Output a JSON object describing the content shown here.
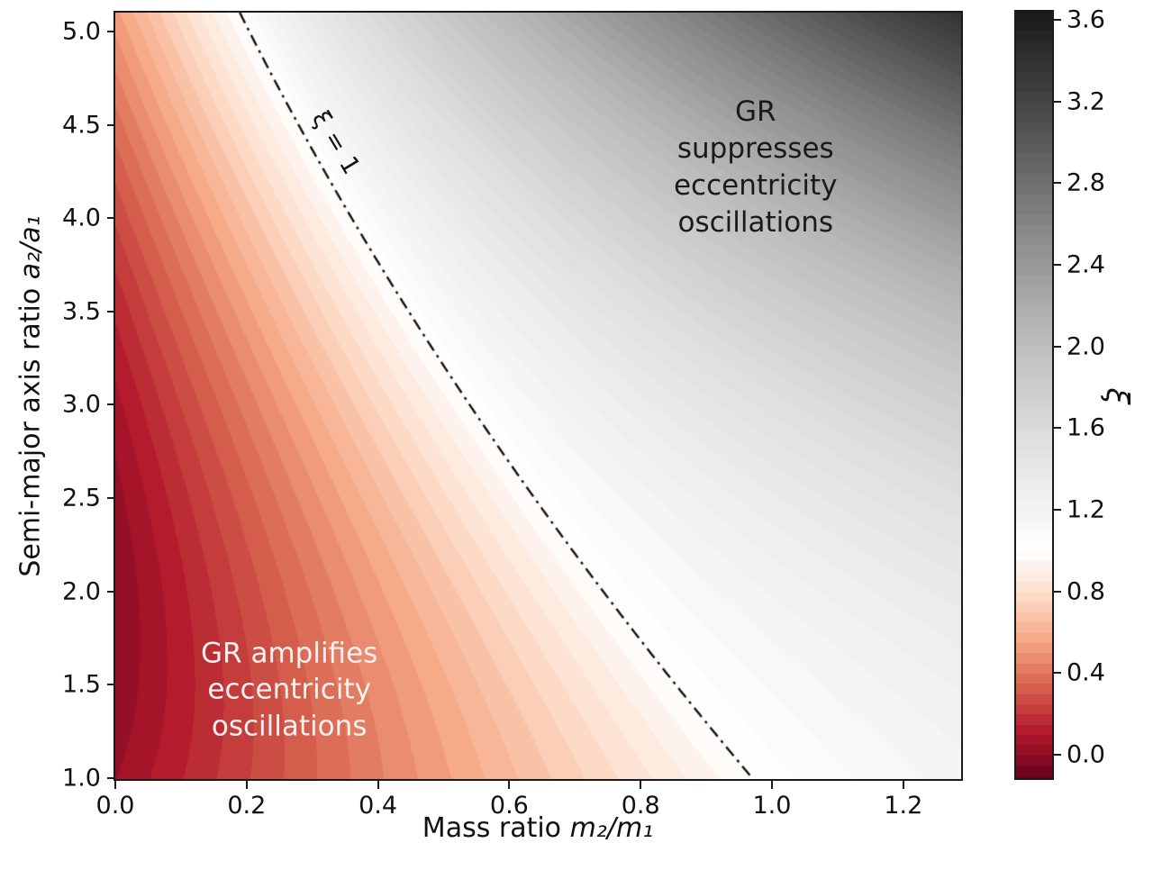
{
  "chart_data": {
    "type": "heatmap",
    "subtype": "filled-contour",
    "title": "",
    "xlabel_prefix": "Mass ratio ",
    "xlabel_math": "m₂/m₁",
    "ylabel_prefix": "Semi-major axis ratio ",
    "ylabel_math": "a₂/a₁",
    "x_range": [
      0.0,
      1.2867
    ],
    "y_range": [
      1.0,
      5.101
    ],
    "x_ticks": [
      0.0,
      0.2,
      0.4,
      0.6,
      0.8,
      1.0,
      1.2
    ],
    "x_tick_labels": [
      "0.0",
      "0.2",
      "0.4",
      "0.6",
      "0.8",
      "1.0",
      "1.2"
    ],
    "y_ticks": [
      1.0,
      1.5,
      2.0,
      2.5,
      3.0,
      3.5,
      4.0,
      4.5,
      5.0
    ],
    "y_tick_labels": [
      "1.0",
      "1.5",
      "2.0",
      "2.5",
      "3.0",
      "3.5",
      "4.0",
      "4.5",
      "5.0"
    ],
    "grid": false,
    "colorbar": {
      "label": "ξ",
      "side": "right",
      "vmin": -0.11,
      "vmax": 3.64,
      "vcenter": 1.0,
      "norm": "two-slope (white at ξ = 1)",
      "ticks": [
        0.0,
        0.4,
        0.8,
        1.2,
        1.6,
        2.0,
        2.4,
        2.8,
        3.2,
        3.6
      ],
      "tick_labels": [
        "0.0",
        "0.4",
        "0.8",
        "1.2",
        "1.6",
        "2.0",
        "2.4",
        "2.8",
        "3.2",
        "3.6"
      ]
    },
    "levels_step": 0.05,
    "colormap": {
      "name": "RdGy",
      "anchors": [
        [
          0.0,
          "#67001f"
        ],
        [
          0.1,
          "#b2182b"
        ],
        [
          0.2,
          "#d6604d"
        ],
        [
          0.3,
          "#f4a582"
        ],
        [
          0.4,
          "#fddbc7"
        ],
        [
          0.5,
          "#ffffff"
        ],
        [
          0.6,
          "#e0e0e0"
        ],
        [
          0.7,
          "#bababa"
        ],
        [
          0.8,
          "#878787"
        ],
        [
          0.9,
          "#4d4d4d"
        ],
        [
          1.0,
          "#1a1a1a"
        ]
      ]
    },
    "contour_line": {
      "label": "ξ = 1",
      "style": "dash-dot",
      "color": "#111111",
      "points_m_a": [
        {
          "m": 0.19,
          "a": 5.1
        },
        {
          "m": 0.38,
          "a": 4.1
        },
        {
          "m": 0.53,
          "a": 3.03
        },
        {
          "m": 0.69,
          "a": 2.04
        },
        {
          "m": 0.88,
          "a": 1.37
        },
        {
          "m": 0.97,
          "a": 1.0
        }
      ]
    },
    "annotations": [
      {
        "id": "suppresses",
        "text": "GR suppresses\neccentricity\noscillations",
        "color": "#1a1a1a",
        "m": 0.975,
        "a": 4.27
      },
      {
        "id": "amplifies",
        "text": "GR amplifies\neccentricity\noscillations",
        "color": "#ffffff",
        "m": 0.265,
        "a": 1.47
      }
    ],
    "sampled_values": [
      {
        "a": 5.05,
        "m": [
          0.0,
          0.51,
          0.9,
          1.285
        ],
        "xi": [
          0.53,
          2.06,
          2.43,
          3.3
        ]
      },
      {
        "a": 4.1,
        "m": [
          0.0,
          0.1,
          0.2,
          0.3,
          0.5,
          0.6,
          0.8,
          1.0,
          1.285
        ],
        "xi": [
          0.16,
          0.46,
          0.55,
          0.8,
          1.24,
          1.35,
          1.64,
          1.82,
          2.03
        ]
      },
      {
        "a": 3.03,
        "m": [
          0.0,
          0.2,
          0.4,
          0.8,
          1.0,
          1.285
        ],
        "xi": [
          0.1,
          0.39,
          0.71,
          1.48,
          1.61,
          1.8
        ]
      },
      {
        "a": 2.04,
        "m": [
          0.0,
          0.2,
          0.4,
          0.6,
          0.8,
          1.0,
          1.285
        ],
        "xi": [
          0.06,
          0.25,
          0.62,
          0.82,
          1.05,
          1.32,
          1.5
        ]
      },
      {
        "a": 1.37,
        "m": [
          0.0,
          0.7,
          0.8,
          1.0,
          1.285
        ],
        "xi": [
          0.06,
          0.74,
          0.87,
          1.12,
          1.4
        ]
      }
    ],
    "field_model": {
      "description": "empirical fit: xi=1 ridge m*(a)=c0+c1*a+c2*a^2; red side xi=1-(L0+L1*a)*(m*-m); gray side xi=1+(m-m*)^p*(G0+G1*(a-1)^q)",
      "c0": 1.2208,
      "c1": -0.2626,
      "c2": 0.01185,
      "L0": 0.62,
      "L1": 0.36,
      "p": 0.8,
      "G0": 0.45,
      "G1": 0.16,
      "q": 1.7
    }
  }
}
